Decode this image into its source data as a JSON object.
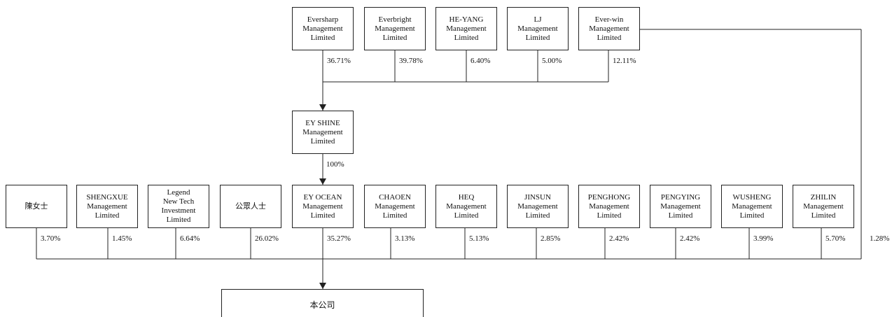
{
  "top_row": [
    {
      "label": "Eversharp\nManagement\nLimited",
      "pct": "36.71%"
    },
    {
      "label": "Everbright\nManagement\nLimited",
      "pct": "39.78%"
    },
    {
      "label": "HE-YANG\nManagement\nLimited",
      "pct": "6.40%"
    },
    {
      "label": "LJ\nManagement\nLimited",
      "pct": "5.00%"
    },
    {
      "label": "Ever-win\nManagement\nLimited",
      "pct": "12.11%"
    }
  ],
  "middle": {
    "label": "EY SHINE\nManagement\nLimited",
    "pct": "100%"
  },
  "bottom_row": [
    {
      "label": "陳女士",
      "pct": "3.70%"
    },
    {
      "label": "SHENGXUE\nManagement\nLimited",
      "pct": "1.45%"
    },
    {
      "label": "Legend\nNew Tech\nInvestment\nLimited",
      "pct": "6.64%"
    },
    {
      "label": "公眾人士",
      "pct": "26.02%"
    },
    {
      "label": "EY OCEAN\nManagement\nLimited",
      "pct": "35.27%"
    },
    {
      "label": "CHAOEN\nManagement\nLimited",
      "pct": "3.13%"
    },
    {
      "label": "HEQ\nManagement\nLimited",
      "pct": "5.13%"
    },
    {
      "label": "JINSUN\nManagement\nLimited",
      "pct": "2.85%"
    },
    {
      "label": "PENGHONG\nManagement\nLimited",
      "pct": "2.42%"
    },
    {
      "label": "PENGYING\nManagement\nLimited",
      "pct": "2.42%"
    },
    {
      "label": "WUSHENG\nManagement\nLimited",
      "pct": "3.99%"
    },
    {
      "label": "ZHILIN\nManagement\nLimited",
      "pct": "5.70%"
    }
  ],
  "everwin_direct_pct": "1.28%",
  "company": {
    "label": "本公司"
  }
}
